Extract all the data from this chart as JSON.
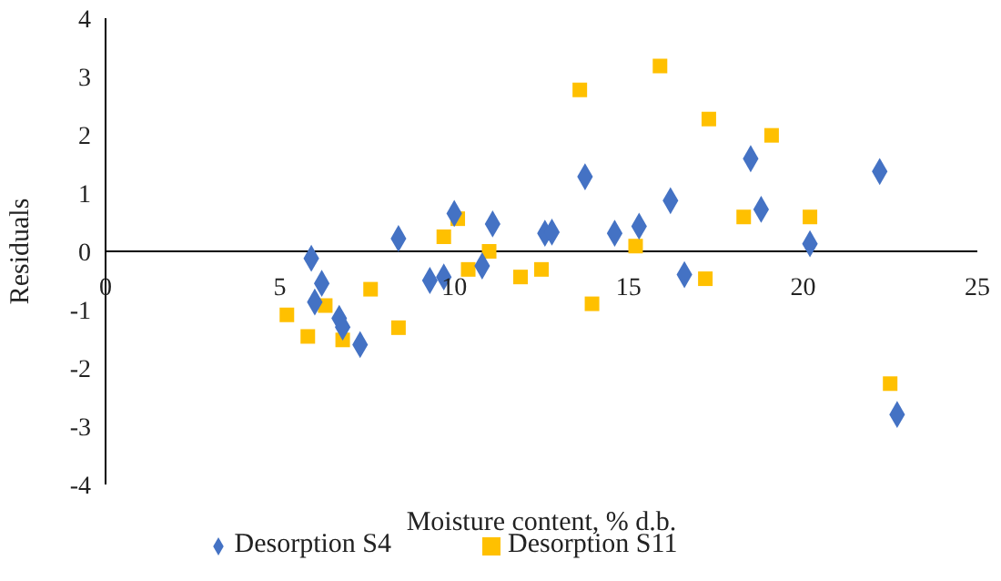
{
  "chart_data": {
    "type": "scatter",
    "xlabel": "Moisture content, % d.b.",
    "ylabel": "Residuals",
    "xlim": [
      0,
      25
    ],
    "xticks": [
      0,
      5,
      10,
      15,
      20,
      25
    ],
    "ylim": [
      -4,
      4
    ],
    "yticks": [
      -4,
      -3,
      -2,
      -1,
      0,
      1,
      2,
      3,
      4
    ],
    "grid": false,
    "legend": "bottom",
    "series": [
      {
        "name": "Desorption S4",
        "color": "#4472c4",
        "marker": "diamond",
        "x": [
          5.9,
          6.2,
          6.0,
          6.7,
          6.8,
          7.3,
          8.4,
          9.3,
          9.7,
          10.0,
          10.8,
          11.1,
          12.6,
          12.8,
          13.75,
          14.6,
          15.3,
          16.2,
          16.6,
          18.5,
          18.8,
          20.2,
          22.2,
          22.7
        ],
        "values": [
          -0.12,
          -0.55,
          -0.87,
          -1.15,
          -1.3,
          -1.6,
          0.22,
          -0.5,
          -0.44,
          0.65,
          -0.25,
          0.47,
          0.31,
          0.33,
          1.28,
          0.31,
          0.43,
          0.87,
          -0.4,
          1.59,
          0.72,
          0.13,
          1.37,
          -2.8
        ]
      },
      {
        "name": "Desorption S11",
        "color": "#ffc000",
        "marker": "square",
        "x": [
          5.2,
          5.8,
          6.3,
          6.8,
          7.6,
          8.4,
          9.7,
          10.1,
          10.4,
          11.0,
          11.9,
          12.5,
          13.6,
          13.95,
          15.2,
          15.9,
          17.2,
          17.3,
          18.3,
          19.1,
          20.2,
          22.5
        ],
        "values": [
          -1.09,
          -1.46,
          -0.93,
          -1.52,
          -0.65,
          -1.31,
          0.25,
          0.56,
          -0.31,
          0.0,
          -0.44,
          -0.31,
          2.77,
          -0.9,
          0.09,
          3.18,
          -0.47,
          2.27,
          0.59,
          1.99,
          0.59,
          -2.27
        ]
      }
    ]
  }
}
